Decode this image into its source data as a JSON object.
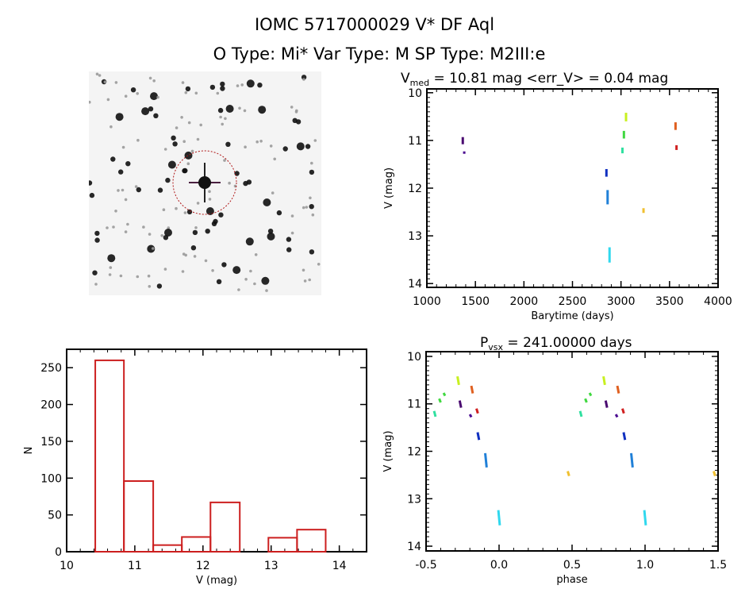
{
  "header": {
    "line1": "IOMC 5717000029    V* DF Aql",
    "line2": "O Type: Mi*  Var Type: M   SP Type: M2III:e"
  },
  "colors": {
    "hist": "#cc1f1f",
    "axis": "#000000",
    "circle": "#b01818"
  },
  "chart_data": [
    {
      "type": "scatter",
      "title_main": "V",
      "title_sub": "med",
      "title_rest": " = 10.81 mag <err_V> = 0.04 mag",
      "xlabel": "Barytime (days)",
      "ylabel": "V (mag)",
      "xlim": [
        1000,
        4000
      ],
      "ylim": [
        9.92,
        14.08
      ],
      "y_inverted": true,
      "xticks": [
        1000,
        1500,
        2000,
        2500,
        3000,
        3500,
        4000
      ],
      "yticks": [
        10,
        11,
        12,
        13,
        14
      ],
      "segments": [
        {
          "x": 1370,
          "v": [
            10.93,
            11.08
          ],
          "color": "#4a0a70"
        },
        {
          "x": 1385,
          "v": [
            11.23,
            11.28
          ],
          "color": "#4a0a90"
        },
        {
          "x": 2850,
          "v": [
            11.6,
            11.76
          ],
          "color": "#1030c0"
        },
        {
          "x": 2862,
          "v": [
            12.04,
            12.34
          ],
          "color": "#2080d8"
        },
        {
          "x": 2882,
          "v": [
            13.24,
            13.56
          ],
          "color": "#30d8ee"
        },
        {
          "x": 3015,
          "v": [
            11.15,
            11.27
          ],
          "color": "#30e0a0"
        },
        {
          "x": 3030,
          "v": [
            10.8,
            10.96
          ],
          "color": "#40d840"
        },
        {
          "x": 3052,
          "v": [
            10.42,
            10.6
          ],
          "color": "#c8f020"
        },
        {
          "x": 3232,
          "v": [
            12.42,
            12.52
          ],
          "color": "#f0c030"
        },
        {
          "x": 3562,
          "v": [
            10.62,
            10.78
          ],
          "color": "#e06020"
        },
        {
          "x": 3572,
          "v": [
            11.1,
            11.2
          ],
          "color": "#d02020"
        }
      ]
    },
    {
      "type": "bar",
      "xlabel": "V (mag)",
      "ylabel": "N",
      "xlim": [
        10,
        14.4
      ],
      "ylim": [
        0,
        275
      ],
      "xticks": [
        10,
        11,
        12,
        13,
        14
      ],
      "yticks": [
        0,
        50,
        100,
        150,
        200,
        250
      ],
      "bin_edges": [
        10.42,
        10.84,
        11.27,
        11.69,
        12.11,
        12.54,
        12.96,
        13.38,
        13.8
      ],
      "values": [
        260,
        96,
        9,
        20,
        67,
        0,
        19,
        30
      ]
    },
    {
      "type": "scatter",
      "title_main": "P",
      "title_sub": "vsx",
      "title_rest": " = 241.00000 days",
      "xlabel": "phase",
      "ylabel": "V (mag)",
      "xlim": [
        -0.5,
        1.5
      ],
      "ylim": [
        9.9,
        14.1
      ],
      "y_inverted": true,
      "xticks": [
        -0.5,
        0.0,
        0.5,
        1.0,
        1.5
      ],
      "xtick_labels": [
        "-0.5",
        "0.0",
        "0.5",
        "1.0",
        "1.5"
      ],
      "yticks": [
        10,
        11,
        12,
        13,
        14
      ],
      "repeat_period": 1,
      "segments": [
        {
          "x": -0.445,
          "v": [
            11.15,
            11.27
          ],
          "color": "#30e0a0"
        },
        {
          "x": -0.41,
          "v": [
            10.89,
            10.97
          ],
          "color": "#40d840"
        },
        {
          "x": -0.38,
          "v": [
            10.77,
            10.83
          ],
          "color": "#40d840"
        },
        {
          "x": -0.285,
          "v": [
            10.42,
            10.6
          ],
          "color": "#c8f020"
        },
        {
          "x": -0.19,
          "v": [
            10.62,
            10.78
          ],
          "color": "#e06020"
        },
        {
          "x": -0.27,
          "v": [
            10.93,
            11.08
          ],
          "color": "#4a0a70"
        },
        {
          "x": -0.2,
          "v": [
            11.22,
            11.28
          ],
          "color": "#4a0a90"
        },
        {
          "x": -0.155,
          "v": [
            11.1,
            11.2
          ],
          "color": "#d02020"
        },
        {
          "x": -0.147,
          "v": [
            11.6,
            11.76
          ],
          "color": "#1030c0"
        },
        {
          "x": -0.095,
          "v": [
            12.04,
            12.34
          ],
          "color": "#2080d8"
        },
        {
          "x": -0.005,
          "v": [
            13.24,
            13.56
          ],
          "color": "#30d8ee"
        },
        {
          "x": 0.47,
          "v": [
            12.42,
            12.52
          ],
          "color": "#f0c030"
        }
      ]
    }
  ]
}
